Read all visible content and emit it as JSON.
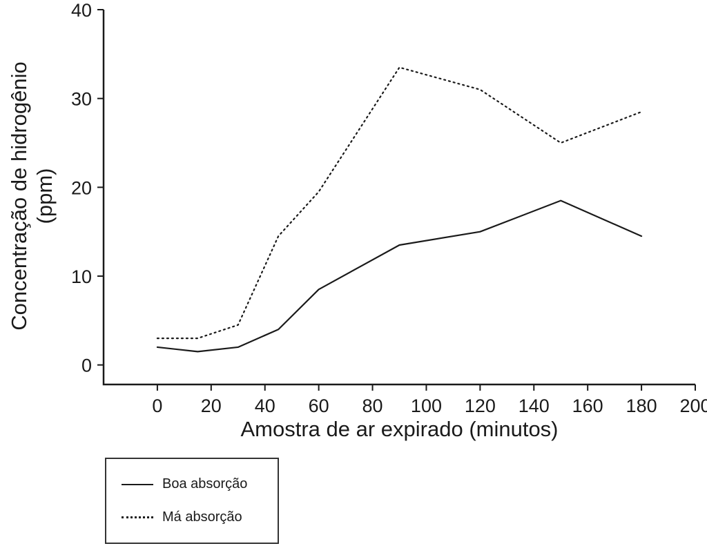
{
  "chart_data": {
    "type": "line",
    "title": "",
    "xlabel": "Amostra de ar expirado (minutos)",
    "ylabel": "Concentração de hidrogênio (ppm)",
    "ylabel_lines": [
      "Concentração de hidrogênio",
      "(ppm)"
    ],
    "x": [
      0,
      15,
      30,
      45,
      60,
      90,
      120,
      150,
      180
    ],
    "series": [
      {
        "name": "Boa absorção",
        "style": "solid",
        "values": [
          2,
          1.5,
          2,
          4,
          8.5,
          13.5,
          15,
          18.5,
          14.5
        ]
      },
      {
        "name": "Má absorção",
        "style": "dotted",
        "values": [
          3,
          3,
          4.5,
          14.5,
          19.5,
          33.5,
          31,
          25,
          28.5
        ]
      }
    ],
    "xlim": [
      0,
      200
    ],
    "ylim": [
      0,
      40
    ],
    "xticks": [
      0,
      20,
      40,
      60,
      80,
      100,
      120,
      140,
      160,
      180,
      200
    ],
    "yticks": [
      0,
      10,
      20,
      30,
      40
    ],
    "grid": "off",
    "legend_position": "bottom-left-outside",
    "line_color": "#1a1a1a",
    "axis_color": "#1a1a1a"
  },
  "legend": {
    "items": [
      {
        "label": "Boa absorção",
        "style": "solid"
      },
      {
        "label": "Má absorção",
        "style": "dotted"
      }
    ]
  }
}
